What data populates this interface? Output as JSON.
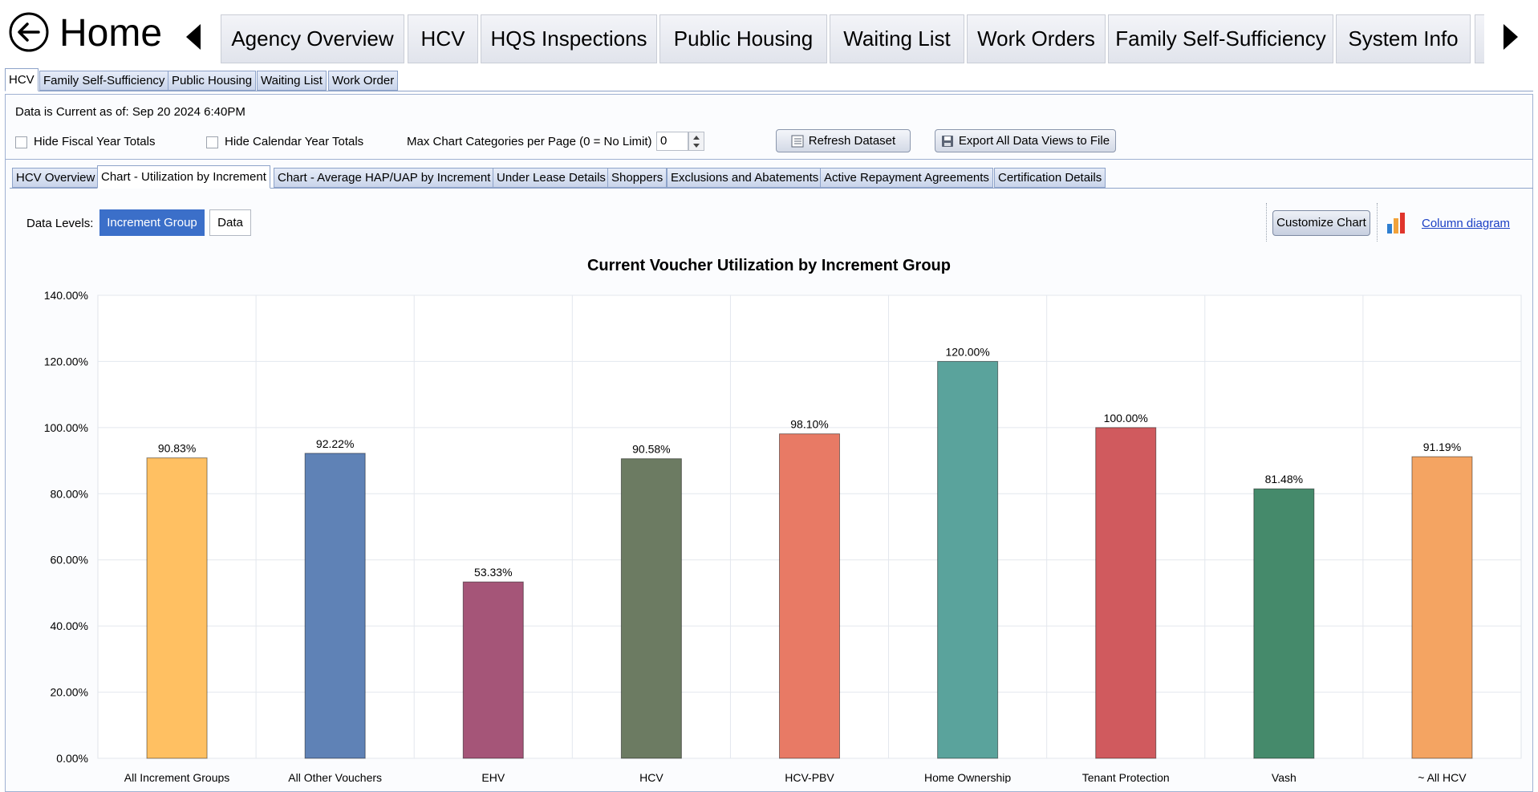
{
  "nav": {
    "title": "Home",
    "main_tabs": [
      "Agency Overview",
      "HCV",
      "HQS Inspections",
      "Public Housing",
      "Waiting List",
      "Work Orders",
      "Family Self-Sufficiency",
      "System Info"
    ]
  },
  "sub_tabs": [
    "HCV",
    "Family Self-Sufficiency",
    "Public Housing",
    "Waiting List",
    "Work Order"
  ],
  "toolbar": {
    "current_as_of": "Data is Current as of: Sep 20 2024  6:40PM",
    "hide_fiscal": "Hide Fiscal Year Totals",
    "hide_calendar": "Hide Calendar Year Totals",
    "max_categories_label": "Max Chart Categories per Page (0 = No Limit)",
    "max_categories_value": "0",
    "refresh_label": "Refresh Dataset",
    "export_label": "Export All Data Views to File"
  },
  "inner_tabs": [
    "HCV Overview",
    "Chart - Utilization by Increment",
    "Chart - Average HAP/UAP by Increment",
    "Under Lease Details",
    "Shoppers",
    "Exclusions and Abatements",
    "Active Repayment Agreements",
    "Certification Details"
  ],
  "data_levels": {
    "label": "Data Levels:",
    "options": [
      "Increment Group",
      "Data"
    ],
    "selected": "Increment Group"
  },
  "chart_controls": {
    "customize_label": "Customize Chart",
    "diagram_link": "Column diagram"
  },
  "chart_data": {
    "type": "bar",
    "title": "Current Voucher Utilization by Increment Group",
    "xlabel": "",
    "ylabel": "",
    "categories": [
      "All Increment Groups",
      "All Other Vouchers",
      "EHV",
      "HCV",
      "HCV-PBV",
      "Home Ownership",
      "Tenant Protection",
      "Vash",
      "~ All HCV"
    ],
    "values": [
      90.83,
      92.22,
      53.33,
      90.58,
      98.1,
      120.0,
      100.0,
      81.48,
      91.19
    ],
    "value_labels": [
      "90.83%",
      "92.22%",
      "53.33%",
      "90.58%",
      "98.10%",
      "120.00%",
      "100.00%",
      "81.48%",
      "91.19%"
    ],
    "colors": [
      "#FFC062",
      "#5F82B6",
      "#A55578",
      "#6C7B62",
      "#E87A65",
      "#5AA39C",
      "#D05A5E",
      "#458A6B",
      "#F4A462"
    ],
    "ylim": [
      0,
      140
    ],
    "yticks": [
      "0.00%",
      "20.00%",
      "40.00%",
      "60.00%",
      "80.00%",
      "100.00%",
      "120.00%",
      "140.00%"
    ],
    "grid": true,
    "legend": "none"
  }
}
